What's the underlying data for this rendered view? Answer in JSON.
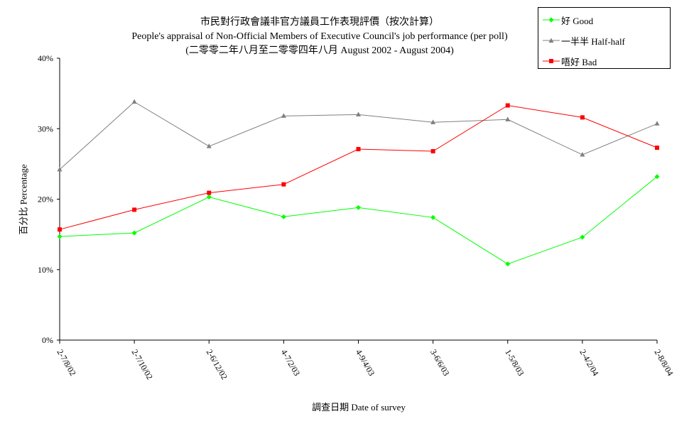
{
  "chart_data": {
    "type": "line",
    "title": "市民對行政會議非官方議員工作表現評價（按次計算）",
    "subtitle": "People's appraisal of Non-Official Members of Executive Council's job performance (per poll)",
    "subtitle2": "(二零零二年八月至二零零四年八月 August 2002 - August 2004)",
    "xlabel": "調查日期 Date of survey",
    "ylabel": "百分比 Percentage",
    "categories": [
      "2-7/8/02",
      "2-7/10/02",
      "2-6/12/02",
      "4-7/2/03",
      "4-9/4/03",
      "3-6/6/03",
      "1-5/8/03",
      "2-4/2/04",
      "2-8/8/04"
    ],
    "ylim": [
      0,
      40
    ],
    "yticks": [
      0,
      10,
      20,
      30,
      40
    ],
    "ytick_labels": [
      "0%",
      "10%",
      "20%",
      "30%",
      "40%"
    ],
    "grid": false,
    "legend_position": "top-right",
    "series": [
      {
        "name": "好 Good",
        "color": "#00ff00",
        "marker": "diamond",
        "values": [
          14.7,
          15.2,
          20.3,
          17.5,
          18.8,
          17.4,
          10.8,
          14.6,
          23.2
        ]
      },
      {
        "name": "一半半 Half-half",
        "color": "#808080",
        "marker": "triangle",
        "values": [
          24.2,
          33.8,
          27.5,
          31.8,
          32.0,
          30.9,
          31.3,
          26.3,
          30.7
        ]
      },
      {
        "name": "唔好 Bad",
        "color": "#ff0000",
        "marker": "square",
        "values": [
          15.7,
          18.5,
          20.9,
          22.1,
          27.1,
          26.8,
          33.3,
          31.6,
          27.3
        ]
      }
    ]
  }
}
